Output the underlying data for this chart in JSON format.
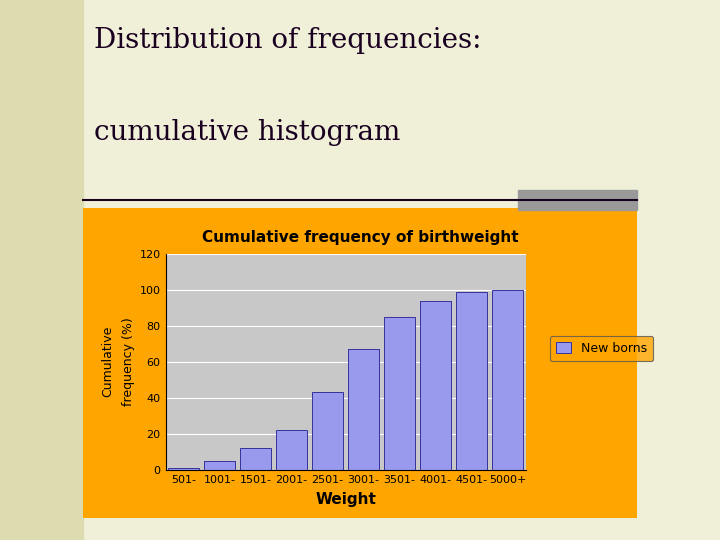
{
  "title_line1": "Distribution of frequencies:",
  "title_line2": "cumulative histogram",
  "chart_title": "Cumulative frequency of birthweight",
  "xlabel": "Weight",
  "ylabel": "Cumulative\nfrequency (%)",
  "categories": [
    "501-",
    "1001-",
    "1501-",
    "2001-",
    "2501-",
    "3001-",
    "3501-",
    "4001-",
    "4501-",
    "5000+"
  ],
  "values": [
    1,
    5,
    12,
    22,
    43,
    67,
    85,
    94,
    99,
    100
  ],
  "bar_color": "#9999ee",
  "bar_edge_color": "#333399",
  "ylim": [
    0,
    120
  ],
  "yticks": [
    0,
    20,
    40,
    60,
    80,
    100,
    120
  ],
  "legend_label": "New borns",
  "slide_bg": "#f0f0d8",
  "left_panel_bg": "#dcdcb0",
  "chart_bg": "#ffa500",
  "plot_bg": "#c8c8c8",
  "title_color": "#1a0020",
  "divider_color": "#1a0020",
  "gray_rect_color": "#999999",
  "chart_title_fontsize": 11,
  "main_title_fontsize": 20,
  "axis_label_fontsize": 9,
  "tick_fontsize": 8,
  "legend_fontsize": 9
}
